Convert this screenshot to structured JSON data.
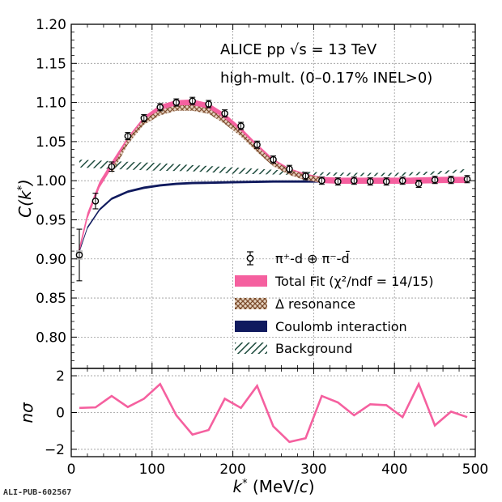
{
  "colors": {
    "data_points": "#000000",
    "total_fit": "#f5609f",
    "delta_resonance": "#7a4a2a",
    "coulomb": "#101a5e",
    "background": "#1f4d3f"
  },
  "annotations": {
    "experiment": "ALICE pp √s = 13 TeV",
    "selection": "high-mult. (0–0.17% INEL>0)"
  },
  "publication_id": "ALI-PUB-602567",
  "chart_data": [
    {
      "type": "line",
      "xlabel": "k* (MeV/c)",
      "ylabel": "C(k*)",
      "xlim": [
        0,
        500
      ],
      "ylim": [
        0.76,
        1.2
      ],
      "xticks": [
        0,
        100,
        200,
        300,
        400,
        500
      ],
      "yticks": [
        "0.80",
        "0.85",
        "0.90",
        "0.95",
        "1.00",
        "1.05",
        "1.10",
        "1.15",
        "1.20"
      ],
      "grid": true,
      "legend_position": "center-right",
      "series": [
        {
          "name": "π⁺-d ⊕ π⁻-d̄",
          "kind": "points",
          "x": [
            10,
            30,
            50,
            70,
            90,
            110,
            130,
            150,
            170,
            190,
            210,
            230,
            250,
            270,
            290,
            310,
            330,
            350,
            370,
            390,
            410,
            430,
            450,
            470,
            490
          ],
          "y": [
            0.905,
            0.974,
            1.018,
            1.057,
            1.08,
            1.094,
            1.1,
            1.102,
            1.098,
            1.086,
            1.07,
            1.046,
            1.027,
            1.015,
            1.006,
            1.0,
            0.999,
            1.0,
            0.999,
            0.999,
            1.0,
            0.996,
            1.001,
            1.001,
            1.002
          ],
          "yerr": [
            0.033,
            0.01,
            0.006,
            0.004,
            0.003,
            0.003,
            0.003,
            0.003,
            0.003,
            0.003,
            0.003,
            0.002,
            0.002,
            0.002,
            0.002,
            0.002,
            0.002,
            0.002,
            0.002,
            0.002,
            0.002,
            0.002,
            0.002,
            0.002,
            0.002
          ]
        },
        {
          "name": "Total Fit (χ²/ndf = 14/15)",
          "kind": "band",
          "x": [
            8,
            20,
            35,
            50,
            70,
            90,
            110,
            130,
            150,
            170,
            190,
            210,
            230,
            250,
            270,
            290,
            310,
            330,
            350,
            380,
            420,
            460,
            490
          ],
          "y": [
            0.903,
            0.955,
            0.995,
            1.02,
            1.052,
            1.078,
            1.093,
            1.099,
            1.1,
            1.095,
            1.082,
            1.064,
            1.043,
            1.024,
            1.012,
            1.005,
            1.001,
            1.0,
            1.0,
            1.0,
            1.0,
            1.001,
            1.001
          ],
          "half_width": 0.004
        },
        {
          "name": "Δ resonance",
          "kind": "band",
          "x": [
            50,
            70,
            90,
            110,
            130,
            150,
            170,
            190,
            210,
            230,
            250,
            270,
            290,
            310
          ],
          "y": [
            1.012,
            1.05,
            1.075,
            1.087,
            1.093,
            1.093,
            1.089,
            1.076,
            1.06,
            1.04,
            1.022,
            1.011,
            1.004,
            1.001
          ],
          "half_width": 0.0035
        },
        {
          "name": "Coulomb interaction",
          "kind": "band",
          "x": [
            8,
            20,
            35,
            50,
            70,
            90,
            110,
            130,
            150,
            200,
            250,
            300,
            350,
            400,
            450,
            490
          ],
          "y": [
            0.903,
            0.94,
            0.963,
            0.977,
            0.986,
            0.991,
            0.994,
            0.996,
            0.997,
            0.998,
            0.999,
            0.999,
            1.0,
            1.0,
            1.0,
            1.0
          ],
          "half_width": 0.0015
        },
        {
          "name": "Background",
          "kind": "band",
          "x": [
            10,
            50,
            100,
            150,
            200,
            250,
            300,
            350,
            400,
            450,
            490
          ],
          "y": [
            1.022,
            1.02,
            1.018,
            1.016,
            1.013,
            1.011,
            1.009,
            1.008,
            1.008,
            1.01,
            1.013
          ],
          "half_width": [
            0.005,
            0.005,
            0.005,
            0.004,
            0.004,
            0.003,
            0.002,
            0.002,
            0.002,
            0.002,
            0.002
          ]
        }
      ]
    },
    {
      "type": "line",
      "xlabel": "k* (MeV/c)",
      "ylabel": "nσ",
      "xlim": [
        0,
        500
      ],
      "ylim": [
        -2.4,
        2.4
      ],
      "xticks": [
        0,
        100,
        200,
        300,
        400,
        500
      ],
      "yticks": [
        -2,
        0,
        2
      ],
      "grid": true,
      "series": [
        {
          "kind": "line",
          "x": [
            10,
            30,
            50,
            70,
            90,
            110,
            130,
            150,
            170,
            190,
            210,
            230,
            250,
            270,
            290,
            310,
            330,
            350,
            370,
            390,
            410,
            430,
            450,
            470,
            490
          ],
          "y": [
            0.25,
            0.28,
            0.9,
            0.3,
            0.75,
            1.55,
            -0.15,
            -1.2,
            -0.95,
            0.75,
            0.25,
            1.45,
            -0.75,
            -1.6,
            -1.4,
            0.9,
            0.55,
            -0.15,
            0.45,
            0.4,
            -0.25,
            1.55,
            -0.7,
            0.05,
            -0.25
          ]
        }
      ]
    }
  ],
  "legend": {
    "entries": [
      {
        "key": "points",
        "label": "π⁺-d ⊕ π⁻-d̄"
      },
      {
        "key": "fit",
        "label": "Total Fit (χ²/ndf = 14/15)"
      },
      {
        "key": "delta",
        "label": "Δ resonance"
      },
      {
        "key": "coulomb",
        "label": "Coulomb interaction"
      },
      {
        "key": "background",
        "label": "Background"
      }
    ]
  }
}
